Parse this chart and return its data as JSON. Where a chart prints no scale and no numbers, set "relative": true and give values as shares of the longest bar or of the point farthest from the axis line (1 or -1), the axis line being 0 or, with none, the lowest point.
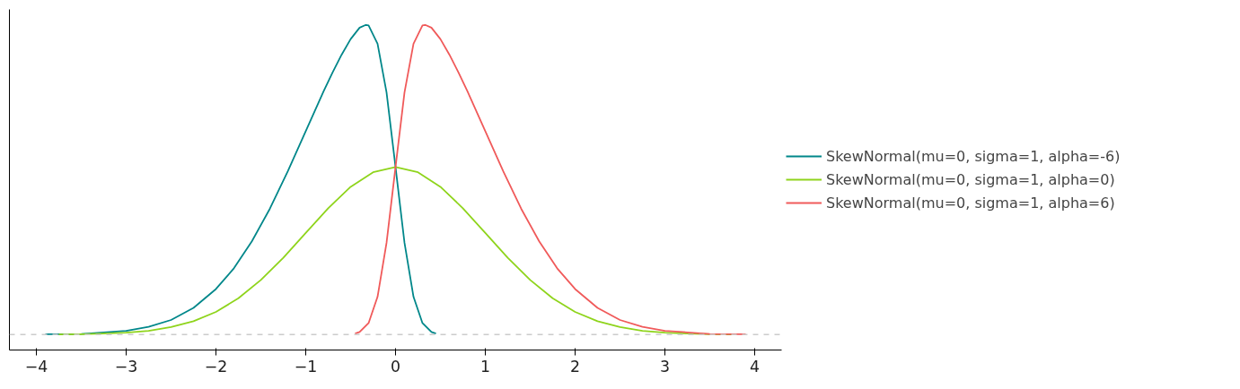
{
  "chart_data": {
    "type": "line",
    "relative": true,
    "legend": "right",
    "grid": false,
    "tick_labels": "x",
    "line_style": "solid",
    "marker": "none",
    "xlim": [
      -4.3,
      4.3
    ],
    "xticks": [
      {
        "value": -4,
        "label": "−4"
      },
      {
        "value": -3,
        "label": "−3"
      },
      {
        "value": -2,
        "label": "−2"
      },
      {
        "value": -1,
        "label": "−1"
      },
      0,
      1,
      2,
      3,
      4
    ],
    "ref_lines": [
      {
        "axis": "y",
        "value": 0,
        "color": "#cccccc",
        "line_style": "dashed"
      }
    ],
    "series": [
      {
        "name": "SkewNormal(mu=0, sigma=1, alpha=-6)",
        "color": "#00878a",
        "x": [
          -3.9,
          -3.5,
          -3.0,
          -2.75,
          -2.5,
          -2.25,
          -2.0,
          -1.8,
          -1.6,
          -1.4,
          -1.2,
          -1.0,
          -0.8,
          -0.7,
          -0.6,
          -0.5,
          -0.4,
          -0.33,
          -0.3,
          -0.2,
          -0.1,
          0,
          0.1,
          0.2,
          0.3,
          0.4,
          0.45
        ],
        "values": [
          0.001,
          0.002,
          0.012,
          0.025,
          0.047,
          0.086,
          0.147,
          0.214,
          0.301,
          0.406,
          0.527,
          0.657,
          0.786,
          0.847,
          0.904,
          0.954,
          0.991,
          1.0,
          0.998,
          0.939,
          0.782,
          0.541,
          0.296,
          0.122,
          0.037,
          0.008,
          0.003
        ]
      },
      {
        "name": "SkewNormal(mu=0, sigma=1, alpha=0)",
        "color": "#8fd41c",
        "x": [
          -3.75,
          -3.5,
          -3.25,
          -3.0,
          -2.75,
          -2.5,
          -2.25,
          -2.0,
          -1.75,
          -1.5,
          -1.25,
          -1.0,
          -0.75,
          -0.5,
          -0.25,
          0,
          0.25,
          0.5,
          0.75,
          1.0,
          1.25,
          1.5,
          1.75,
          2.0,
          2.25,
          2.5,
          2.75,
          3.0,
          3.25,
          3.5,
          3.75
        ],
        "values": [
          0.0005,
          0.001,
          0.003,
          0.006,
          0.012,
          0.024,
          0.043,
          0.073,
          0.117,
          0.176,
          0.248,
          0.328,
          0.408,
          0.477,
          0.524,
          0.541,
          0.524,
          0.477,
          0.408,
          0.328,
          0.248,
          0.176,
          0.117,
          0.073,
          0.043,
          0.024,
          0.012,
          0.006,
          0.003,
          0.001,
          0.0005
        ]
      },
      {
        "name": "SkewNormal(mu=0, sigma=1, alpha=6)",
        "color": "#f05a5a",
        "x": [
          -0.45,
          -0.4,
          -0.3,
          -0.2,
          -0.1,
          0,
          0.1,
          0.2,
          0.3,
          0.33,
          0.4,
          0.5,
          0.6,
          0.7,
          0.8,
          1.0,
          1.2,
          1.4,
          1.6,
          1.8,
          2.0,
          2.25,
          2.5,
          2.75,
          3.0,
          3.5,
          3.9
        ],
        "values": [
          0.003,
          0.008,
          0.037,
          0.122,
          0.296,
          0.541,
          0.782,
          0.939,
          0.998,
          1.0,
          0.991,
          0.954,
          0.904,
          0.847,
          0.786,
          0.657,
          0.527,
          0.406,
          0.301,
          0.214,
          0.147,
          0.086,
          0.047,
          0.025,
          0.012,
          0.002,
          0.001
        ]
      }
    ]
  }
}
